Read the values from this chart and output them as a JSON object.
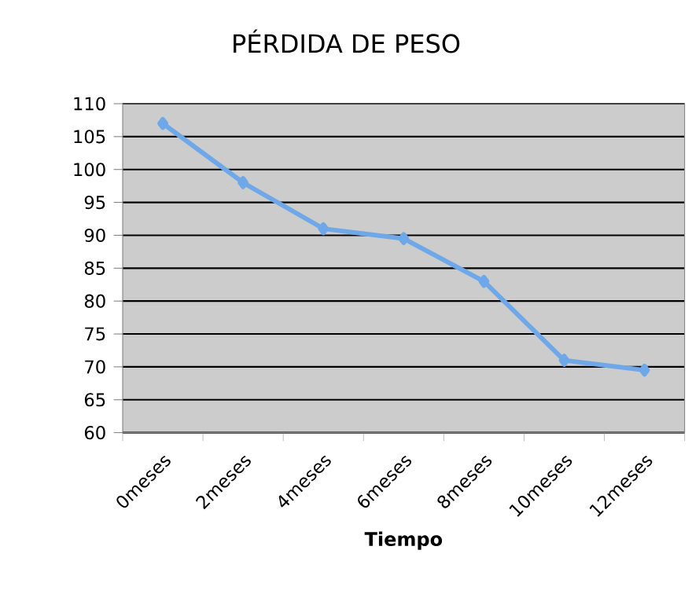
{
  "chart_data": {
    "type": "line",
    "title": "PÉRDIDA DE PESO",
    "xlabel": "Tiempo",
    "categories": [
      "0meses",
      "2meses",
      "4meses",
      "6meses",
      "8meses",
      "10meses",
      "12meses"
    ],
    "series": [
      {
        "color": "#6fa8e8",
        "values": [
          107,
          98,
          91,
          89.5,
          83,
          71,
          69.5
        ]
      }
    ],
    "ylim": [
      60,
      110
    ],
    "yticks": [
      60,
      65,
      70,
      75,
      80,
      85,
      90,
      95,
      100,
      105,
      110
    ],
    "grid": "y",
    "marker": "diamond"
  }
}
